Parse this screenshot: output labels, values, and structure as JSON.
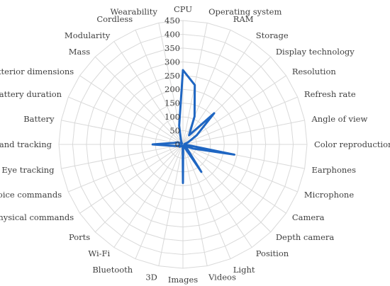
{
  "chart_data": {
    "type": "radar",
    "title": "",
    "rmax": 450,
    "ticks": [
      "0",
      "50",
      "100",
      "150",
      "200",
      "250",
      "300",
      "350",
      "400",
      "450"
    ],
    "tick_values": [
      0,
      50,
      100,
      150,
      200,
      250,
      300,
      350,
      400,
      450
    ],
    "categories": [
      "CPU",
      "Operating system",
      "RAM",
      "Storage",
      "Display technology",
      "Resolution",
      "Refresh rate",
      "Angle of view",
      "Color reproduction",
      "Earphones",
      "Microphone",
      "Camera",
      "Depth camera",
      "Position",
      "Light",
      "Videos",
      "Images",
      "3D",
      "Bluetooth",
      "Wi-Fi",
      "Ports",
      "Physical commands",
      "Voice commands",
      "Eye tracking",
      "Hand tracking",
      "Battery",
      "Battery duration",
      "Exterior dimensions",
      "Mass",
      "Modularity",
      "Cordless",
      "Wearability"
    ],
    "series": [
      {
        "color": "#1f66c2",
        "values": [
          270,
          220,
          110,
          40,
          160,
          60,
          20,
          5,
          5,
          190,
          40,
          10,
          20,
          120,
          5,
          5,
          140,
          5,
          5,
          5,
          10,
          15,
          10,
          30,
          110,
          30,
          20,
          5,
          5,
          10,
          20,
          70
        ]
      }
    ]
  }
}
